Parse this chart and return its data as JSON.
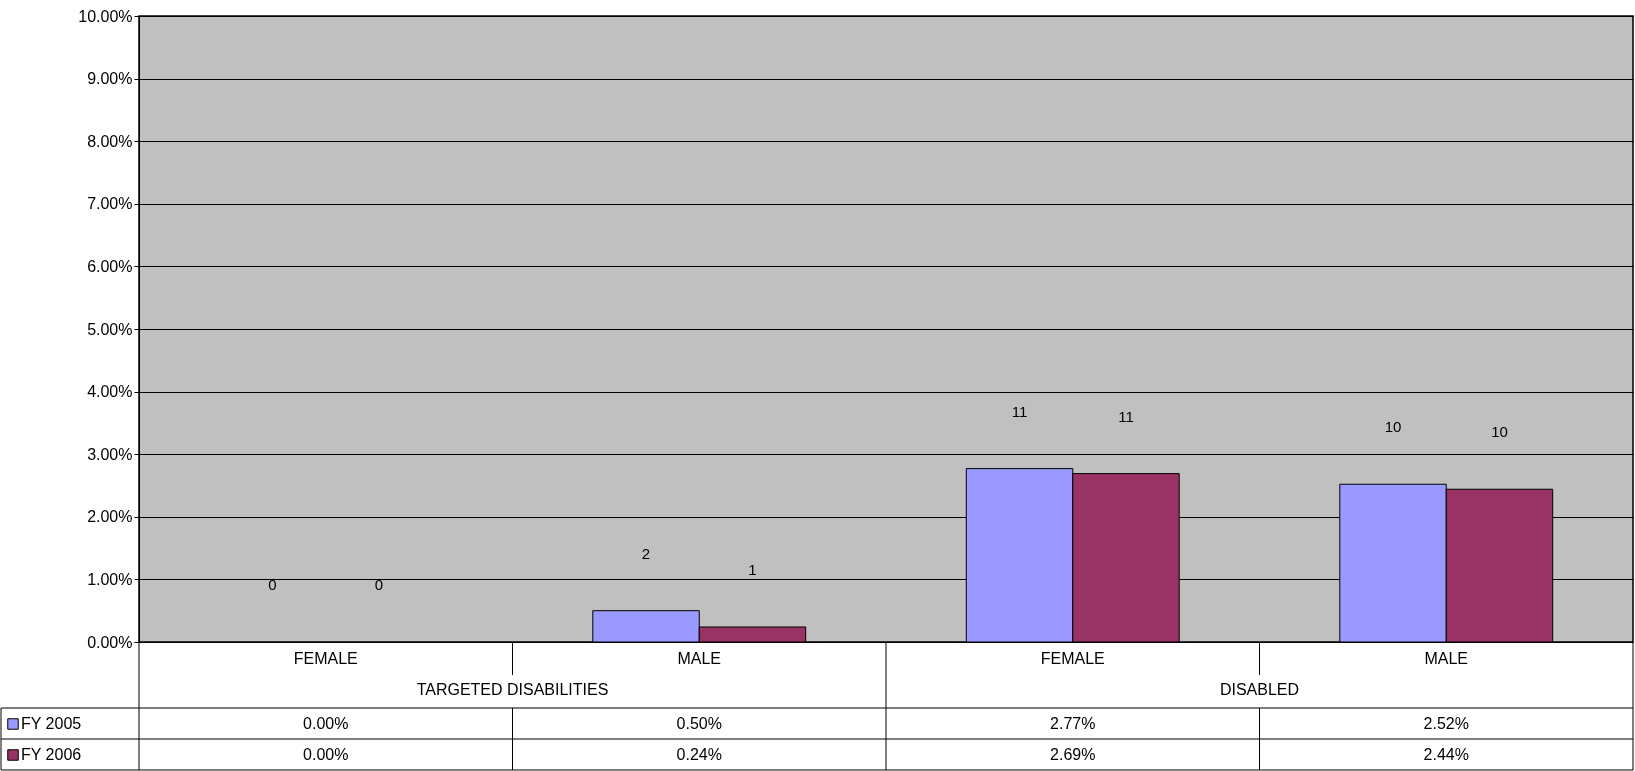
{
  "chart_data": {
    "type": "bar",
    "categories": [
      "FEMALE",
      "MALE",
      "FEMALE",
      "MALE"
    ],
    "series": [
      {
        "name": "FY 2005",
        "color": "#9999ff",
        "values": [
          0.0,
          0.5,
          2.77,
          2.52
        ],
        "value_labels": [
          "0.00%",
          "0.50%",
          "2.77%",
          "2.52%"
        ]
      },
      {
        "name": "FY 2006",
        "color": "#993366",
        "values": [
          0.0,
          0.24,
          2.69,
          2.44
        ],
        "value_labels": [
          "0.00%",
          "0.24%",
          "2.69%",
          "2.44%"
        ]
      }
    ],
    "ylim": [
      0,
      10
    ],
    "yticks": [
      {
        "value": 0,
        "label": "0.00%"
      },
      {
        "value": 1,
        "label": "1.00%"
      },
      {
        "value": 2,
        "label": "2.00%"
      },
      {
        "value": 3,
        "label": "3.00%"
      },
      {
        "value": 4,
        "label": "4.00%"
      },
      {
        "value": 5,
        "label": "5.00%"
      },
      {
        "value": 6,
        "label": "6.00%"
      },
      {
        "value": 7,
        "label": "7.00%"
      },
      {
        "value": 8,
        "label": "8.00%"
      },
      {
        "value": 9,
        "label": "9.00%"
      },
      {
        "value": 10,
        "label": "10.00%"
      }
    ],
    "grid": "y",
    "legend": "bottom",
    "annotations": [
      "TARGETED DISABILITIES",
      "DISABLED",
      "0",
      "2",
      "11",
      "10",
      "0",
      "1",
      "11",
      "10"
    ]
  }
}
